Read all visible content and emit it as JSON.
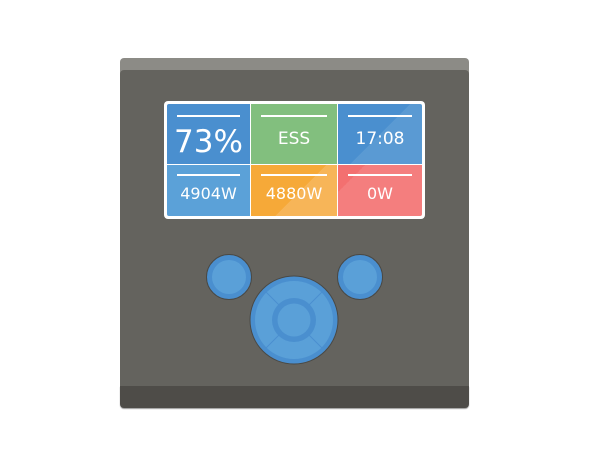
{
  "screen": {
    "tiles": [
      {
        "name": "battery-soc",
        "value": "73%",
        "color": "#4a8fcf"
      },
      {
        "name": "mode",
        "value": "ESS",
        "color": "#82bf7e"
      },
      {
        "name": "clock",
        "value": "17:08",
        "color": "#4d91cf"
      },
      {
        "name": "ac-input",
        "value": "4904W",
        "color": "#5ba1d8"
      },
      {
        "name": "ac-loads",
        "value": "4880W",
        "color": "#f6a938"
      },
      {
        "name": "dc-power",
        "value": "0W",
        "color": "#f47a7a"
      }
    ]
  },
  "colors": {
    "button": "#5aa0d8",
    "button_ring": "#4a8fcf",
    "body": "#64635e"
  }
}
